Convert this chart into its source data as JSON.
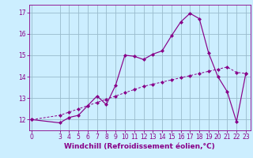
{
  "x_wavy": [
    0,
    3,
    4,
    5,
    6,
    7,
    8,
    9,
    10,
    11,
    12,
    13,
    14,
    15,
    16,
    17,
    18,
    19,
    20,
    21,
    22,
    23
  ],
  "y_wavy": [
    12.0,
    11.85,
    12.1,
    12.2,
    12.65,
    13.1,
    12.7,
    13.6,
    15.0,
    14.95,
    14.8,
    15.05,
    15.2,
    15.9,
    16.55,
    16.95,
    16.7,
    15.1,
    14.0,
    13.3,
    11.9,
    14.15
  ],
  "x_line": [
    0,
    3,
    4,
    5,
    6,
    7,
    8,
    9,
    10,
    11,
    12,
    13,
    14,
    15,
    16,
    17,
    18,
    19,
    20,
    21,
    22,
    23
  ],
  "y_line": [
    12.0,
    12.2,
    12.35,
    12.5,
    12.65,
    12.8,
    12.95,
    13.1,
    13.25,
    13.4,
    13.55,
    13.65,
    13.75,
    13.85,
    13.95,
    14.05,
    14.15,
    14.25,
    14.35,
    14.45,
    14.2,
    14.15
  ],
  "color": "#880088",
  "bg_color": "#cceeff",
  "grid_color": "#99bbcc",
  "xlabel": "Windchill (Refroidissement éolien,°C)",
  "ylim": [
    11.5,
    17.35
  ],
  "yticks": [
    12,
    13,
    14,
    15,
    16,
    17
  ],
  "ytick_labels": [
    "12",
    "13",
    "14",
    "15",
    "16",
    "17"
  ],
  "xticks": [
    0,
    3,
    4,
    5,
    6,
    7,
    8,
    9,
    10,
    11,
    12,
    13,
    14,
    15,
    16,
    17,
    18,
    19,
    20,
    21,
    22,
    23
  ],
  "xlim": [
    -0.3,
    23.5
  ],
  "xlabel_fontsize": 6.5,
  "tick_fontsize": 5.5,
  "marker": "D",
  "markersize": 2.0,
  "linewidth": 0.85,
  "line_linewidth": 0.7,
  "line_dashes": [
    3,
    2
  ]
}
